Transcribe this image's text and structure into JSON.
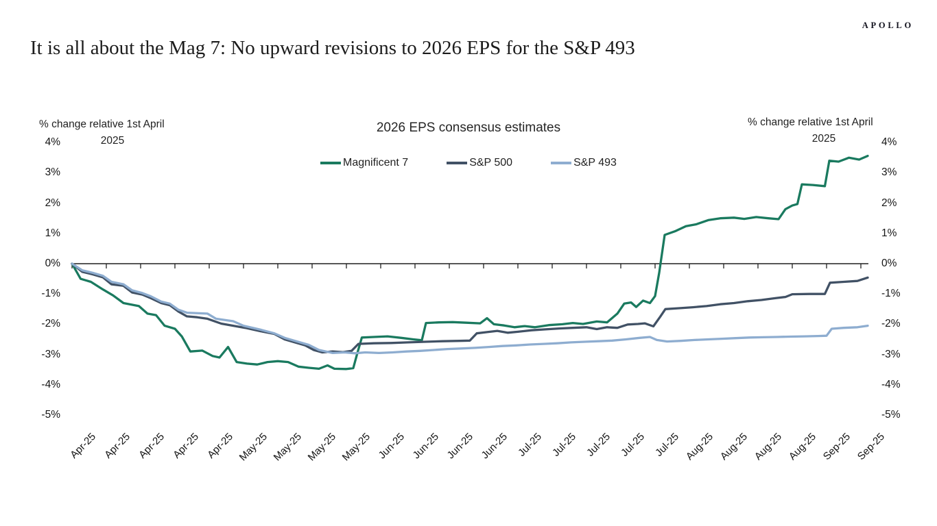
{
  "brand": {
    "logo": "APOLLO"
  },
  "title": "It is all about the Mag 7: No upward revisions to 2026 EPS for the S&P 493",
  "axis_note": {
    "line1": "% change relative 1st April",
    "line2": "2025"
  },
  "chart_data": {
    "type": "line",
    "title": "2026 EPS consensus estimates",
    "ylabel_left": "% change relative 1st April 2025",
    "ylabel_right": "% change relative 1st April 2025",
    "ylim": [
      4,
      -5
    ],
    "xlim_weeks": [
      0,
      23.2
    ],
    "grid": false,
    "legend_position": "top-center",
    "axis_color": "#1f1f1f",
    "y_tick_labels": [
      "4%",
      "3%",
      "2%",
      "1%",
      "0%",
      "-1%",
      "-2%",
      "-3%",
      "-4%",
      "-5%"
    ],
    "x_tick_labels": [
      "Apr-25",
      "Apr-25",
      "Apr-25",
      "Apr-25",
      "Apr-25",
      "May-25",
      "May-25",
      "May-25",
      "May-25",
      "Jun-25",
      "Jun-25",
      "Jun-25",
      "Jun-25",
      "Jul-25",
      "Jul-25",
      "Jul-25",
      "Jul-25",
      "Jul-25",
      "Aug-25",
      "Aug-25",
      "Aug-25",
      "Aug-25",
      "Sep-25",
      "Sep-25"
    ],
    "x_unit": "weeks since 1 Apr 2025",
    "y_unit": "% change",
    "series": [
      {
        "name": "Magnificent 7",
        "color": "#1a7a5f",
        "points": [
          [
            0,
            0
          ],
          [
            0.25,
            -0.5
          ],
          [
            0.55,
            -0.6
          ],
          [
            0.9,
            -0.85
          ],
          [
            1.2,
            -1.05
          ],
          [
            1.5,
            -1.3
          ],
          [
            1.95,
            -1.4
          ],
          [
            2.2,
            -1.65
          ],
          [
            2.45,
            -1.7
          ],
          [
            2.7,
            -2.05
          ],
          [
            3.0,
            -2.15
          ],
          [
            3.2,
            -2.4
          ],
          [
            3.45,
            -2.9
          ],
          [
            3.8,
            -2.87
          ],
          [
            4.1,
            -3.05
          ],
          [
            4.3,
            -3.1
          ],
          [
            4.55,
            -2.75
          ],
          [
            4.8,
            -3.25
          ],
          [
            5.1,
            -3.3
          ],
          [
            5.4,
            -3.33
          ],
          [
            5.7,
            -3.25
          ],
          [
            6.0,
            -3.22
          ],
          [
            6.3,
            -3.25
          ],
          [
            6.6,
            -3.4
          ],
          [
            6.9,
            -3.44
          ],
          [
            7.2,
            -3.47
          ],
          [
            7.45,
            -3.36
          ],
          [
            7.65,
            -3.47
          ],
          [
            8.0,
            -3.48
          ],
          [
            8.2,
            -3.45
          ],
          [
            8.32,
            -2.95
          ],
          [
            8.45,
            -2.44
          ],
          [
            8.8,
            -2.42
          ],
          [
            9.2,
            -2.4
          ],
          [
            9.6,
            -2.45
          ],
          [
            9.95,
            -2.5
          ],
          [
            10.2,
            -2.53
          ],
          [
            10.32,
            -1.96
          ],
          [
            10.7,
            -1.94
          ],
          [
            11.1,
            -1.93
          ],
          [
            11.5,
            -1.95
          ],
          [
            11.9,
            -1.97
          ],
          [
            12.1,
            -1.8
          ],
          [
            12.3,
            -2.0
          ],
          [
            12.6,
            -2.04
          ],
          [
            12.9,
            -2.1
          ],
          [
            13.2,
            -2.06
          ],
          [
            13.5,
            -2.1
          ],
          [
            13.9,
            -2.03
          ],
          [
            14.3,
            -2.0
          ],
          [
            14.6,
            -1.96
          ],
          [
            14.9,
            -1.99
          ],
          [
            15.3,
            -1.91
          ],
          [
            15.6,
            -1.94
          ],
          [
            15.9,
            -1.65
          ],
          [
            16.1,
            -1.32
          ],
          [
            16.3,
            -1.28
          ],
          [
            16.45,
            -1.43
          ],
          [
            16.65,
            -1.22
          ],
          [
            16.85,
            -1.3
          ],
          [
            17.0,
            -1.07
          ],
          [
            17.12,
            -0.3
          ],
          [
            17.28,
            0.95
          ],
          [
            17.6,
            1.08
          ],
          [
            17.9,
            1.24
          ],
          [
            18.2,
            1.3
          ],
          [
            18.55,
            1.44
          ],
          [
            18.9,
            1.5
          ],
          [
            19.3,
            1.52
          ],
          [
            19.6,
            1.48
          ],
          [
            19.95,
            1.54
          ],
          [
            20.3,
            1.5
          ],
          [
            20.6,
            1.47
          ],
          [
            20.8,
            1.8
          ],
          [
            21.0,
            1.92
          ],
          [
            21.15,
            1.97
          ],
          [
            21.28,
            2.62
          ],
          [
            21.6,
            2.6
          ],
          [
            21.95,
            2.56
          ],
          [
            22.08,
            3.4
          ],
          [
            22.35,
            3.37
          ],
          [
            22.65,
            3.5
          ],
          [
            22.95,
            3.44
          ],
          [
            23.2,
            3.56
          ]
        ]
      },
      {
        "name": "S&P 500",
        "color": "#415165",
        "points": [
          [
            0,
            0
          ],
          [
            0.3,
            -0.27
          ],
          [
            0.6,
            -0.35
          ],
          [
            0.9,
            -0.45
          ],
          [
            1.15,
            -0.68
          ],
          [
            1.5,
            -0.73
          ],
          [
            1.75,
            -0.95
          ],
          [
            2.05,
            -1.02
          ],
          [
            2.3,
            -1.14
          ],
          [
            2.6,
            -1.3
          ],
          [
            2.85,
            -1.37
          ],
          [
            3.1,
            -1.58
          ],
          [
            3.35,
            -1.74
          ],
          [
            3.65,
            -1.77
          ],
          [
            3.95,
            -1.82
          ],
          [
            4.35,
            -1.98
          ],
          [
            4.7,
            -2.05
          ],
          [
            5.05,
            -2.12
          ],
          [
            5.5,
            -2.23
          ],
          [
            5.9,
            -2.32
          ],
          [
            6.2,
            -2.5
          ],
          [
            6.5,
            -2.6
          ],
          [
            6.8,
            -2.7
          ],
          [
            7.05,
            -2.85
          ],
          [
            7.3,
            -2.93
          ],
          [
            7.6,
            -2.9
          ],
          [
            7.9,
            -2.92
          ],
          [
            8.15,
            -2.88
          ],
          [
            8.35,
            -2.65
          ],
          [
            8.8,
            -2.63
          ],
          [
            9.3,
            -2.62
          ],
          [
            9.8,
            -2.6
          ],
          [
            10.3,
            -2.58
          ],
          [
            10.8,
            -2.56
          ],
          [
            11.3,
            -2.55
          ],
          [
            11.6,
            -2.54
          ],
          [
            11.8,
            -2.3
          ],
          [
            12.1,
            -2.26
          ],
          [
            12.4,
            -2.22
          ],
          [
            12.7,
            -2.28
          ],
          [
            13.0,
            -2.25
          ],
          [
            13.4,
            -2.2
          ],
          [
            13.8,
            -2.17
          ],
          [
            14.2,
            -2.14
          ],
          [
            14.6,
            -2.12
          ],
          [
            15.0,
            -2.1
          ],
          [
            15.3,
            -2.16
          ],
          [
            15.6,
            -2.1
          ],
          [
            15.9,
            -2.12
          ],
          [
            16.2,
            -2.01
          ],
          [
            16.5,
            -1.99
          ],
          [
            16.7,
            -1.97
          ],
          [
            16.95,
            -2.07
          ],
          [
            17.15,
            -1.75
          ],
          [
            17.3,
            -1.5
          ],
          [
            17.7,
            -1.47
          ],
          [
            18.1,
            -1.44
          ],
          [
            18.5,
            -1.4
          ],
          [
            18.9,
            -1.34
          ],
          [
            19.3,
            -1.3
          ],
          [
            19.7,
            -1.24
          ],
          [
            20.1,
            -1.2
          ],
          [
            20.5,
            -1.14
          ],
          [
            20.8,
            -1.1
          ],
          [
            21.0,
            -1.01
          ],
          [
            21.5,
            -1.0
          ],
          [
            21.95,
            -1.0
          ],
          [
            22.1,
            -0.63
          ],
          [
            22.5,
            -0.6
          ],
          [
            22.9,
            -0.57
          ],
          [
            23.2,
            -0.46
          ]
        ]
      },
      {
        "name": "S&P 493",
        "color": "#8eadd0",
        "points": [
          [
            0,
            0
          ],
          [
            0.3,
            -0.22
          ],
          [
            0.6,
            -0.3
          ],
          [
            0.9,
            -0.4
          ],
          [
            1.15,
            -0.6
          ],
          [
            1.5,
            -0.68
          ],
          [
            1.75,
            -0.88
          ],
          [
            2.05,
            -0.97
          ],
          [
            2.3,
            -1.08
          ],
          [
            2.6,
            -1.25
          ],
          [
            2.85,
            -1.32
          ],
          [
            3.1,
            -1.52
          ],
          [
            3.35,
            -1.62
          ],
          [
            3.95,
            -1.65
          ],
          [
            4.2,
            -1.82
          ],
          [
            4.7,
            -1.9
          ],
          [
            5.0,
            -2.05
          ],
          [
            5.5,
            -2.18
          ],
          [
            5.9,
            -2.3
          ],
          [
            6.2,
            -2.45
          ],
          [
            6.5,
            -2.55
          ],
          [
            6.9,
            -2.68
          ],
          [
            7.2,
            -2.85
          ],
          [
            7.6,
            -2.95
          ],
          [
            7.95,
            -2.93
          ],
          [
            8.25,
            -2.96
          ],
          [
            8.55,
            -2.93
          ],
          [
            8.95,
            -2.95
          ],
          [
            9.35,
            -2.93
          ],
          [
            9.75,
            -2.9
          ],
          [
            10.15,
            -2.88
          ],
          [
            10.55,
            -2.85
          ],
          [
            10.95,
            -2.82
          ],
          [
            11.35,
            -2.8
          ],
          [
            11.75,
            -2.78
          ],
          [
            12.15,
            -2.75
          ],
          [
            12.55,
            -2.72
          ],
          [
            12.95,
            -2.7
          ],
          [
            13.35,
            -2.67
          ],
          [
            13.75,
            -2.65
          ],
          [
            14.15,
            -2.63
          ],
          [
            14.55,
            -2.6
          ],
          [
            14.95,
            -2.58
          ],
          [
            15.35,
            -2.56
          ],
          [
            15.75,
            -2.54
          ],
          [
            16.15,
            -2.5
          ],
          [
            16.55,
            -2.45
          ],
          [
            16.85,
            -2.42
          ],
          [
            17.05,
            -2.52
          ],
          [
            17.35,
            -2.57
          ],
          [
            17.75,
            -2.55
          ],
          [
            18.15,
            -2.52
          ],
          [
            18.55,
            -2.5
          ],
          [
            18.95,
            -2.48
          ],
          [
            19.35,
            -2.46
          ],
          [
            19.75,
            -2.44
          ],
          [
            20.15,
            -2.43
          ],
          [
            20.55,
            -2.42
          ],
          [
            20.95,
            -2.41
          ],
          [
            21.35,
            -2.4
          ],
          [
            21.75,
            -2.39
          ],
          [
            22.0,
            -2.38
          ],
          [
            22.15,
            -2.15
          ],
          [
            22.5,
            -2.12
          ],
          [
            22.9,
            -2.1
          ],
          [
            23.2,
            -2.05
          ]
        ]
      }
    ]
  }
}
